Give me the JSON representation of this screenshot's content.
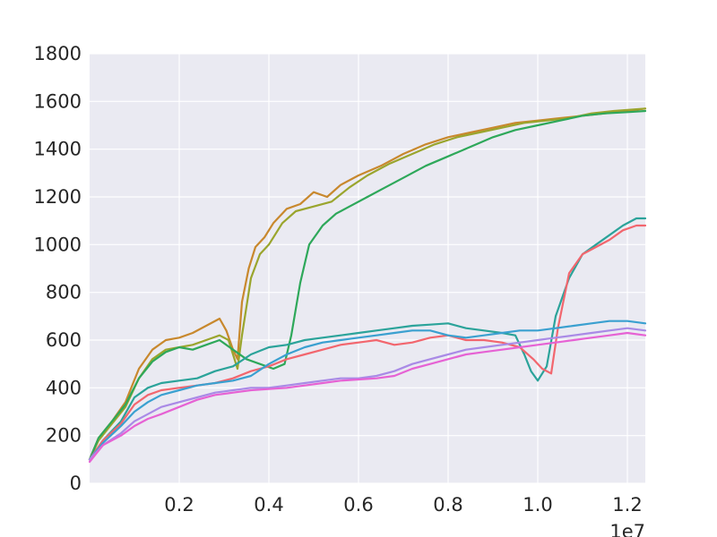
{
  "chart_data": {
    "type": "line",
    "title": "",
    "xlabel": "",
    "ylabel": "",
    "x_offset_label": "1e7",
    "xlim": [
      0,
      12400000
    ],
    "ylim": [
      0,
      1800
    ],
    "x_ticks": [
      {
        "value": 2000000,
        "label": "0.2"
      },
      {
        "value": 4000000,
        "label": "0.4"
      },
      {
        "value": 6000000,
        "label": "0.6"
      },
      {
        "value": 8000000,
        "label": "0.8"
      },
      {
        "value": 10000000,
        "label": "1.0"
      },
      {
        "value": 12000000,
        "label": "1.2"
      }
    ],
    "y_ticks": [
      {
        "value": 0,
        "label": "0"
      },
      {
        "value": 200,
        "label": "200"
      },
      {
        "value": 400,
        "label": "400"
      },
      {
        "value": 600,
        "label": "600"
      },
      {
        "value": 800,
        "label": "800"
      },
      {
        "value": 1000,
        "label": "1000"
      },
      {
        "value": 1200,
        "label": "1200"
      },
      {
        "value": 1400,
        "label": "1400"
      },
      {
        "value": 1600,
        "label": "1600"
      },
      {
        "value": 1800,
        "label": "1800"
      }
    ],
    "grid": true,
    "background": "#eaeaf2",
    "series": [
      {
        "color": "#c8882d",
        "points": [
          [
            0,
            100
          ],
          [
            200000,
            190
          ],
          [
            500000,
            260
          ],
          [
            800000,
            340
          ],
          [
            1100000,
            480
          ],
          [
            1400000,
            560
          ],
          [
            1700000,
            600
          ],
          [
            2000000,
            610
          ],
          [
            2300000,
            630
          ],
          [
            2600000,
            660
          ],
          [
            2900000,
            690
          ],
          [
            3050000,
            640
          ],
          [
            3200000,
            560
          ],
          [
            3300000,
            520
          ],
          [
            3400000,
            760
          ],
          [
            3550000,
            900
          ],
          [
            3700000,
            990
          ],
          [
            3900000,
            1030
          ],
          [
            4100000,
            1090
          ],
          [
            4400000,
            1150
          ],
          [
            4700000,
            1170
          ],
          [
            5000000,
            1220
          ],
          [
            5300000,
            1200
          ],
          [
            5600000,
            1250
          ],
          [
            6000000,
            1290
          ],
          [
            6500000,
            1330
          ],
          [
            7000000,
            1380
          ],
          [
            7500000,
            1420
          ],
          [
            8000000,
            1450
          ],
          [
            8500000,
            1470
          ],
          [
            9000000,
            1490
          ],
          [
            9500000,
            1510
          ],
          [
            10000000,
            1520
          ],
          [
            10500000,
            1530
          ],
          [
            11000000,
            1540
          ],
          [
            11500000,
            1550
          ],
          [
            12000000,
            1560
          ],
          [
            12400000,
            1570
          ]
        ]
      },
      {
        "color": "#9aa52d",
        "points": [
          [
            0,
            100
          ],
          [
            200000,
            180
          ],
          [
            500000,
            250
          ],
          [
            800000,
            320
          ],
          [
            1100000,
            440
          ],
          [
            1400000,
            520
          ],
          [
            1700000,
            560
          ],
          [
            2000000,
            570
          ],
          [
            2300000,
            580
          ],
          [
            2600000,
            600
          ],
          [
            2900000,
            620
          ],
          [
            3100000,
            600
          ],
          [
            3300000,
            480
          ],
          [
            3400000,
            620
          ],
          [
            3600000,
            860
          ],
          [
            3800000,
            960
          ],
          [
            4000000,
            1000
          ],
          [
            4300000,
            1090
          ],
          [
            4600000,
            1140
          ],
          [
            5000000,
            1160
          ],
          [
            5400000,
            1180
          ],
          [
            5800000,
            1240
          ],
          [
            6200000,
            1290
          ],
          [
            6700000,
            1340
          ],
          [
            7200000,
            1380
          ],
          [
            7700000,
            1420
          ],
          [
            8200000,
            1450
          ],
          [
            8700000,
            1470
          ],
          [
            9200000,
            1490
          ],
          [
            9700000,
            1510
          ],
          [
            10200000,
            1520
          ],
          [
            10700000,
            1530
          ],
          [
            11200000,
            1550
          ],
          [
            11700000,
            1560
          ],
          [
            12400000,
            1570
          ]
        ]
      },
      {
        "color": "#2ea85a",
        "points": [
          [
            0,
            100
          ],
          [
            200000,
            190
          ],
          [
            500000,
            260
          ],
          [
            800000,
            330
          ],
          [
            1100000,
            440
          ],
          [
            1400000,
            510
          ],
          [
            1700000,
            550
          ],
          [
            2000000,
            570
          ],
          [
            2300000,
            560
          ],
          [
            2600000,
            580
          ],
          [
            2900000,
            600
          ],
          [
            3200000,
            560
          ],
          [
            3500000,
            520
          ],
          [
            3800000,
            500
          ],
          [
            4100000,
            480
          ],
          [
            4350000,
            500
          ],
          [
            4500000,
            620
          ],
          [
            4700000,
            840
          ],
          [
            4900000,
            1000
          ],
          [
            5200000,
            1080
          ],
          [
            5500000,
            1130
          ],
          [
            5800000,
            1160
          ],
          [
            6200000,
            1200
          ],
          [
            6600000,
            1240
          ],
          [
            7000000,
            1280
          ],
          [
            7500000,
            1330
          ],
          [
            8000000,
            1370
          ],
          [
            8500000,
            1410
          ],
          [
            9000000,
            1450
          ],
          [
            9500000,
            1480
          ],
          [
            10000000,
            1500
          ],
          [
            10500000,
            1520
          ],
          [
            11000000,
            1540
          ],
          [
            11500000,
            1550
          ],
          [
            12000000,
            1555
          ],
          [
            12400000,
            1560
          ]
        ]
      },
      {
        "color": "#2ba39a",
        "points": [
          [
            0,
            100
          ],
          [
            300000,
            180
          ],
          [
            700000,
            260
          ],
          [
            1000000,
            360
          ],
          [
            1300000,
            400
          ],
          [
            1600000,
            420
          ],
          [
            2000000,
            430
          ],
          [
            2400000,
            440
          ],
          [
            2800000,
            470
          ],
          [
            3200000,
            490
          ],
          [
            3600000,
            540
          ],
          [
            4000000,
            570
          ],
          [
            4400000,
            580
          ],
          [
            4800000,
            600
          ],
          [
            5200000,
            610
          ],
          [
            5600000,
            620
          ],
          [
            6000000,
            630
          ],
          [
            6400000,
            640
          ],
          [
            6800000,
            650
          ],
          [
            7200000,
            660
          ],
          [
            7600000,
            665
          ],
          [
            8000000,
            670
          ],
          [
            8400000,
            650
          ],
          [
            8800000,
            640
          ],
          [
            9200000,
            630
          ],
          [
            9500000,
            620
          ],
          [
            9700000,
            540
          ],
          [
            9850000,
            470
          ],
          [
            10000000,
            430
          ],
          [
            10200000,
            490
          ],
          [
            10400000,
            700
          ],
          [
            10700000,
            860
          ],
          [
            11000000,
            960
          ],
          [
            11300000,
            1000
          ],
          [
            11600000,
            1040
          ],
          [
            11900000,
            1080
          ],
          [
            12200000,
            1110
          ],
          [
            12400000,
            1110
          ]
        ]
      },
      {
        "color": "#f2666e",
        "points": [
          [
            0,
            100
          ],
          [
            300000,
            180
          ],
          [
            700000,
            250
          ],
          [
            1000000,
            330
          ],
          [
            1300000,
            370
          ],
          [
            1600000,
            390
          ],
          [
            2000000,
            400
          ],
          [
            2400000,
            410
          ],
          [
            2800000,
            420
          ],
          [
            3200000,
            440
          ],
          [
            3600000,
            470
          ],
          [
            4000000,
            490
          ],
          [
            4400000,
            520
          ],
          [
            4800000,
            540
          ],
          [
            5200000,
            560
          ],
          [
            5600000,
            580
          ],
          [
            6000000,
            590
          ],
          [
            6400000,
            600
          ],
          [
            6800000,
            580
          ],
          [
            7200000,
            590
          ],
          [
            7600000,
            610
          ],
          [
            8000000,
            620
          ],
          [
            8400000,
            600
          ],
          [
            8800000,
            600
          ],
          [
            9200000,
            590
          ],
          [
            9600000,
            570
          ],
          [
            9900000,
            520
          ],
          [
            10100000,
            480
          ],
          [
            10300000,
            460
          ],
          [
            10450000,
            650
          ],
          [
            10700000,
            880
          ],
          [
            11000000,
            960
          ],
          [
            11300000,
            990
          ],
          [
            11600000,
            1020
          ],
          [
            11900000,
            1060
          ],
          [
            12200000,
            1080
          ],
          [
            12400000,
            1080
          ]
        ]
      },
      {
        "color": "#3aa0d0",
        "points": [
          [
            0,
            100
          ],
          [
            300000,
            170
          ],
          [
            700000,
            240
          ],
          [
            1000000,
            300
          ],
          [
            1300000,
            340
          ],
          [
            1600000,
            370
          ],
          [
            2000000,
            390
          ],
          [
            2400000,
            410
          ],
          [
            2800000,
            420
          ],
          [
            3200000,
            430
          ],
          [
            3600000,
            450
          ],
          [
            4000000,
            500
          ],
          [
            4400000,
            540
          ],
          [
            4800000,
            570
          ],
          [
            5200000,
            590
          ],
          [
            5600000,
            600
          ],
          [
            6000000,
            610
          ],
          [
            6400000,
            620
          ],
          [
            6800000,
            630
          ],
          [
            7200000,
            640
          ],
          [
            7600000,
            640
          ],
          [
            8000000,
            620
          ],
          [
            8400000,
            610
          ],
          [
            8800000,
            620
          ],
          [
            9200000,
            630
          ],
          [
            9600000,
            640
          ],
          [
            10000000,
            640
          ],
          [
            10400000,
            650
          ],
          [
            10800000,
            660
          ],
          [
            11200000,
            670
          ],
          [
            11600000,
            680
          ],
          [
            12000000,
            680
          ],
          [
            12400000,
            670
          ]
        ]
      },
      {
        "color": "#a98ae6",
        "points": [
          [
            0,
            100
          ],
          [
            300000,
            160
          ],
          [
            700000,
            210
          ],
          [
            1000000,
            260
          ],
          [
            1300000,
            290
          ],
          [
            1600000,
            320
          ],
          [
            2000000,
            340
          ],
          [
            2400000,
            360
          ],
          [
            2800000,
            380
          ],
          [
            3200000,
            390
          ],
          [
            3600000,
            400
          ],
          [
            4000000,
            400
          ],
          [
            4400000,
            410
          ],
          [
            4800000,
            420
          ],
          [
            5200000,
            430
          ],
          [
            5600000,
            440
          ],
          [
            6000000,
            440
          ],
          [
            6400000,
            450
          ],
          [
            6800000,
            470
          ],
          [
            7200000,
            500
          ],
          [
            7600000,
            520
          ],
          [
            8000000,
            540
          ],
          [
            8400000,
            560
          ],
          [
            8800000,
            570
          ],
          [
            9200000,
            580
          ],
          [
            9600000,
            590
          ],
          [
            10000000,
            600
          ],
          [
            10400000,
            610
          ],
          [
            10800000,
            620
          ],
          [
            11200000,
            630
          ],
          [
            11600000,
            640
          ],
          [
            12000000,
            650
          ],
          [
            12400000,
            640
          ]
        ]
      },
      {
        "color": "#e662d4",
        "points": [
          [
            0,
            90
          ],
          [
            300000,
            160
          ],
          [
            700000,
            200
          ],
          [
            1000000,
            240
          ],
          [
            1300000,
            270
          ],
          [
            1600000,
            290
          ],
          [
            2000000,
            320
          ],
          [
            2400000,
            350
          ],
          [
            2800000,
            370
          ],
          [
            3200000,
            380
          ],
          [
            3600000,
            390
          ],
          [
            4000000,
            395
          ],
          [
            4400000,
            400
          ],
          [
            4800000,
            410
          ],
          [
            5200000,
            420
          ],
          [
            5600000,
            430
          ],
          [
            6000000,
            435
          ],
          [
            6400000,
            440
          ],
          [
            6800000,
            450
          ],
          [
            7200000,
            480
          ],
          [
            7600000,
            500
          ],
          [
            8000000,
            520
          ],
          [
            8400000,
            540
          ],
          [
            8800000,
            550
          ],
          [
            9200000,
            560
          ],
          [
            9600000,
            570
          ],
          [
            10000000,
            580
          ],
          [
            10400000,
            590
          ],
          [
            10800000,
            600
          ],
          [
            11200000,
            610
          ],
          [
            11600000,
            620
          ],
          [
            12000000,
            630
          ],
          [
            12400000,
            620
          ]
        ]
      }
    ]
  }
}
